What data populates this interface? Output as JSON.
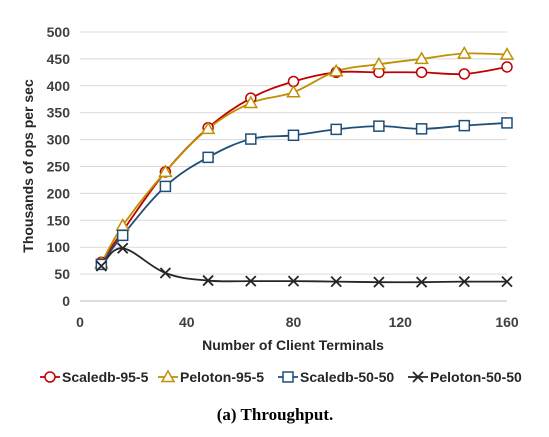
{
  "chart_data": {
    "type": "line",
    "title": "",
    "xlabel": "Number of Client Terminals",
    "ylabel": "Thousands of ops per sec",
    "xlim": [
      0,
      160
    ],
    "ylim": [
      0,
      500
    ],
    "xticks": [
      0,
      40,
      80,
      120,
      160
    ],
    "yticks": [
      0,
      50,
      100,
      150,
      200,
      250,
      300,
      350,
      400,
      450,
      500
    ],
    "grid": "horizontal",
    "legend_position": "bottom",
    "series": [
      {
        "name": "Scaledb-95-5",
        "color": "#c00000",
        "marker": "circle",
        "x": [
          8,
          16,
          32,
          48,
          64,
          80,
          96,
          112,
          128,
          144,
          160
        ],
        "values": [
          72,
          130,
          240,
          322,
          377,
          408,
          425,
          425,
          425,
          422,
          435
        ]
      },
      {
        "name": "Peloton-95-5",
        "color": "#bf9000",
        "marker": "triangle",
        "x": [
          8,
          16,
          32,
          48,
          64,
          80,
          96,
          112,
          128,
          144,
          160
        ],
        "values": [
          70,
          140,
          240,
          320,
          368,
          388,
          427,
          440,
          450,
          460,
          458
        ]
      },
      {
        "name": "Scaledb-50-50",
        "color": "#1f4e79",
        "marker": "square",
        "x": [
          8,
          16,
          32,
          48,
          64,
          80,
          96,
          112,
          128,
          144,
          160
        ],
        "values": [
          68,
          122,
          213,
          267,
          301,
          308,
          319,
          325,
          320,
          326,
          331
        ]
      },
      {
        "name": "Peloton-50-50",
        "color": "#262626",
        "marker": "x",
        "x": [
          8,
          16,
          32,
          48,
          64,
          80,
          96,
          112,
          128,
          144,
          160
        ],
        "values": [
          65,
          98,
          52,
          38,
          37,
          37,
          36,
          35,
          35,
          36,
          36
        ]
      }
    ]
  },
  "caption": {
    "label": "(a)",
    "text": "Throughput."
  }
}
